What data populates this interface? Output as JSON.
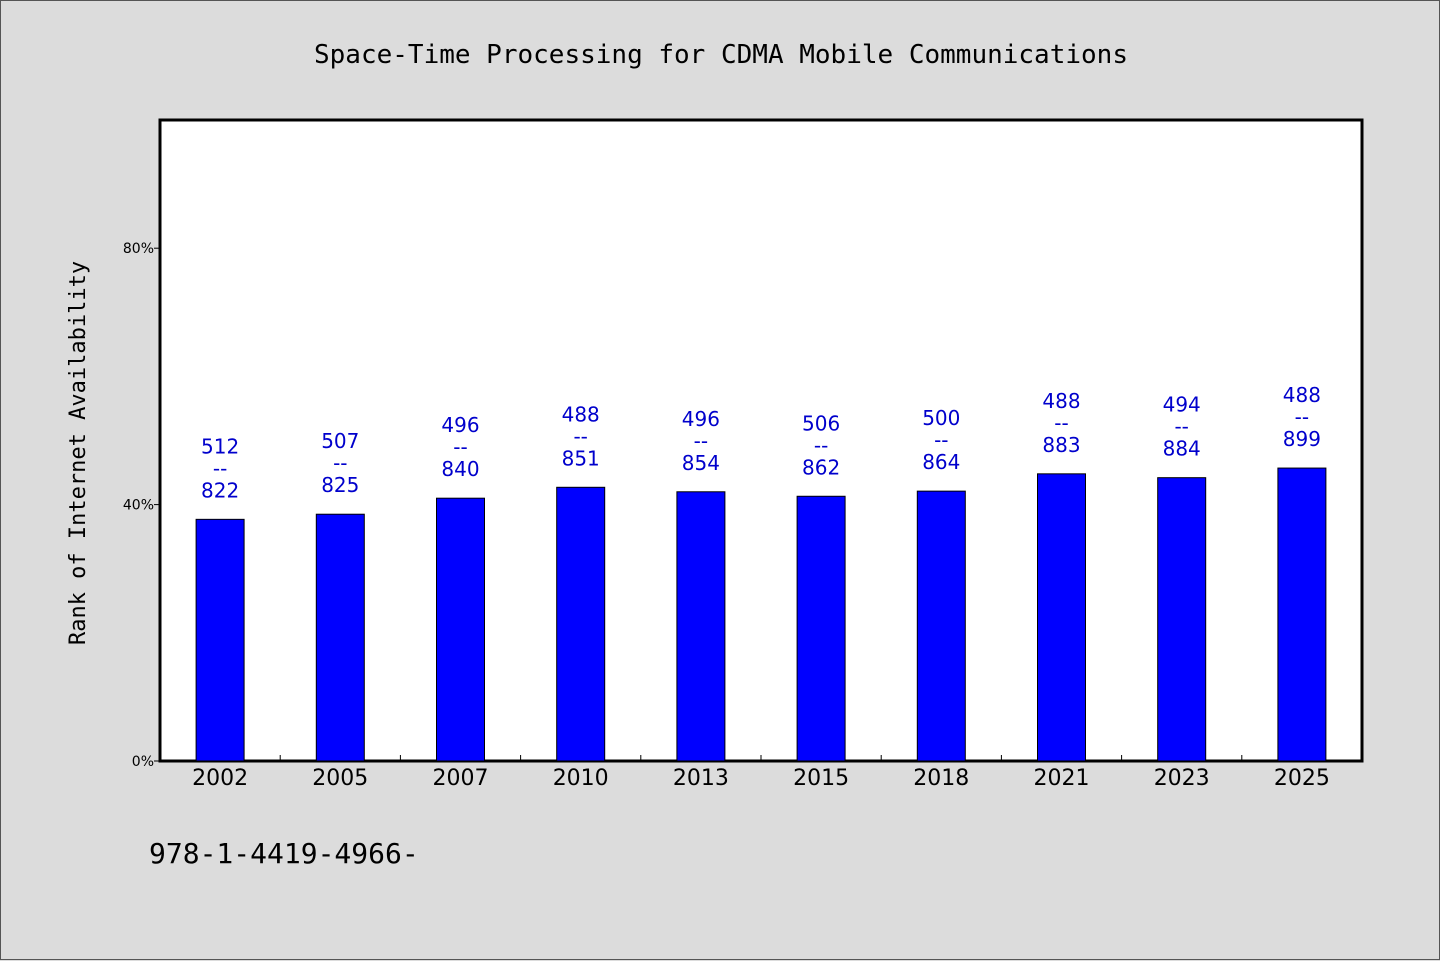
{
  "chart_data": {
    "type": "bar",
    "title": "Space-Time Processing for CDMA Mobile Communications",
    "ylabel": "Rank of Internet Availability",
    "xlabel": "",
    "ylim": [
      0,
      100
    ],
    "yticks": [
      {
        "value": 0,
        "label": "0%"
      },
      {
        "value": 40,
        "label": "40%"
      },
      {
        "value": 80,
        "label": "80%"
      }
    ],
    "categories": [
      "2002",
      "2005",
      "2007",
      "2010",
      "2013",
      "2015",
      "2018",
      "2021",
      "2023",
      "2025"
    ],
    "values": [
      37.7,
      38.5,
      41.0,
      42.7,
      42.0,
      41.3,
      42.1,
      44.8,
      44.2,
      45.7
    ],
    "data_labels": [
      {
        "top": "512",
        "mid": "--",
        "bottom": "822"
      },
      {
        "top": "507",
        "mid": "--",
        "bottom": "825"
      },
      {
        "top": "496",
        "mid": "--",
        "bottom": "840"
      },
      {
        "top": "488",
        "mid": "--",
        "bottom": "851"
      },
      {
        "top": "496",
        "mid": "--",
        "bottom": "854"
      },
      {
        "top": "506",
        "mid": "--",
        "bottom": "862"
      },
      {
        "top": "500",
        "mid": "--",
        "bottom": "864"
      },
      {
        "top": "488",
        "mid": "--",
        "bottom": "883"
      },
      {
        "top": "494",
        "mid": "--",
        "bottom": "884"
      },
      {
        "top": "488",
        "mid": "--",
        "bottom": "899"
      }
    ],
    "grid": false,
    "bar_color": "#0000ff",
    "label_color": "#0000cc"
  },
  "footer": {
    "text": "978-1-4419-4966-"
  }
}
